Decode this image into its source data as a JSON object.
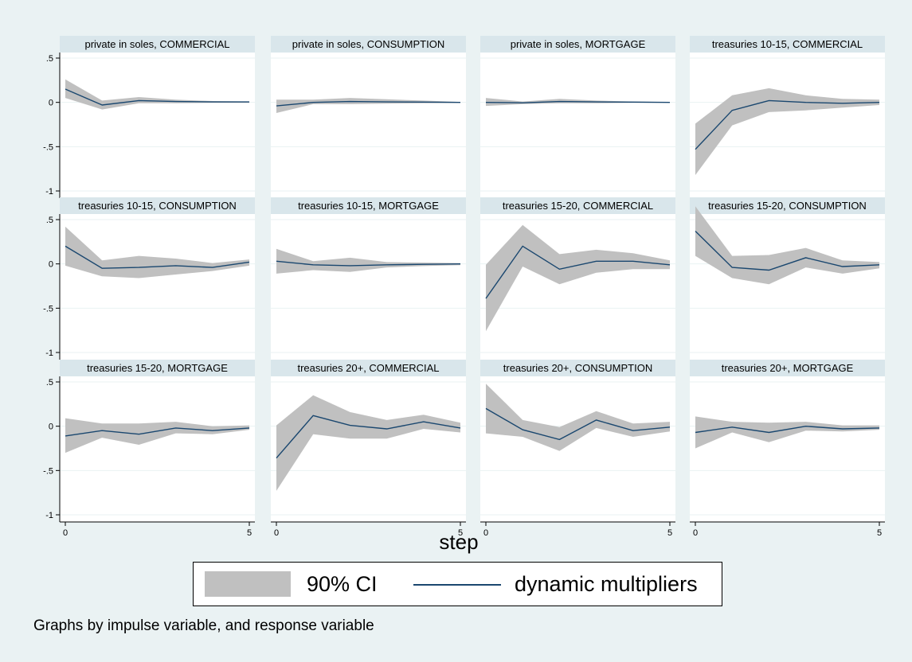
{
  "chart_data": {
    "type": "line",
    "figure_note": "Graphs by impulse variable, and response variable",
    "xlabel": "step",
    "x": [
      0,
      1,
      2,
      3,
      4,
      5
    ],
    "x_tick_labels": [
      "0",
      "5"
    ],
    "xlim": [
      0,
      5
    ],
    "ylim": [
      -1,
      0.5
    ],
    "y_tick_labels": [
      ".5",
      "0",
      "-.5",
      "-1"
    ],
    "grid": "horizontal",
    "legend": {
      "placement": "bottom",
      "items": [
        {
          "label": "90% CI",
          "kind": "band",
          "color": "#c0c0c0"
        },
        {
          "label": "dynamic multipliers",
          "kind": "line",
          "color": "#1a476f"
        }
      ]
    },
    "colors": {
      "band": "#c0c0c0",
      "line": "#1a476f",
      "page_background": "#eaf2f3",
      "plot_background": "#ffffff",
      "title_background": "#d9e6eb",
      "gridline": "#eaf2f3"
    },
    "panels": [
      {
        "title": "private in soles, COMMERCIAL",
        "estimate": [
          0.15,
          -0.03,
          0.02,
          0.01,
          0.005,
          0.005
        ],
        "lower": [
          0.05,
          -0.08,
          -0.01,
          -0.01,
          -0.005,
          -0.005
        ],
        "upper": [
          0.26,
          0.02,
          0.06,
          0.03,
          0.015,
          0.01
        ]
      },
      {
        "title": "private in soles, CONSUMPTION",
        "estimate": [
          -0.04,
          0.0,
          0.01,
          0.005,
          0.003,
          0.0
        ],
        "lower": [
          -0.12,
          -0.02,
          -0.02,
          -0.015,
          -0.01,
          -0.005
        ],
        "upper": [
          0.03,
          0.03,
          0.05,
          0.035,
          0.02,
          0.005
        ]
      },
      {
        "title": "private in soles, MORTGAGE",
        "estimate": [
          0.0,
          -0.005,
          0.01,
          0.005,
          0.003,
          0.0
        ],
        "lower": [
          -0.04,
          -0.02,
          -0.01,
          -0.01,
          -0.005,
          -0.003
        ],
        "upper": [
          0.05,
          0.01,
          0.04,
          0.02,
          0.01,
          0.003
        ]
      },
      {
        "title": "treasuries 10-15, COMMERCIAL",
        "estimate": [
          -0.53,
          -0.09,
          0.02,
          0.0,
          -0.01,
          0.0
        ],
        "lower": [
          -0.82,
          -0.26,
          -0.11,
          -0.09,
          -0.06,
          -0.03
        ],
        "upper": [
          -0.24,
          0.08,
          0.16,
          0.08,
          0.04,
          0.03
        ]
      },
      {
        "title": "treasuries 10-15, CONSUMPTION",
        "estimate": [
          0.2,
          -0.05,
          -0.04,
          -0.02,
          -0.04,
          0.02
        ],
        "lower": [
          -0.02,
          -0.14,
          -0.16,
          -0.12,
          -0.08,
          -0.02
        ],
        "upper": [
          0.42,
          0.04,
          0.09,
          0.06,
          0.01,
          0.05
        ]
      },
      {
        "title": "treasuries 10-15, MORTGAGE",
        "estimate": [
          0.03,
          -0.01,
          -0.02,
          -0.01,
          -0.005,
          0.0
        ],
        "lower": [
          -0.11,
          -0.07,
          -0.09,
          -0.04,
          -0.025,
          -0.015
        ],
        "upper": [
          0.17,
          0.03,
          0.07,
          0.02,
          0.015,
          0.01
        ]
      },
      {
        "title": "treasuries 15-20, COMMERCIAL",
        "estimate": [
          -0.39,
          0.2,
          -0.06,
          0.03,
          0.03,
          -0.01
        ],
        "lower": [
          -0.76,
          -0.03,
          -0.23,
          -0.1,
          -0.06,
          -0.06
        ],
        "upper": [
          -0.01,
          0.44,
          0.11,
          0.16,
          0.12,
          0.04
        ]
      },
      {
        "title": "treasuries 15-20, CONSUMPTION",
        "estimate": [
          0.37,
          -0.04,
          -0.07,
          0.07,
          -0.03,
          -0.01
        ],
        "lower": [
          0.09,
          -0.16,
          -0.23,
          -0.04,
          -0.11,
          -0.05
        ],
        "upper": [
          0.65,
          0.09,
          0.1,
          0.18,
          0.04,
          0.02
        ]
      },
      {
        "title": "treasuries 15-20, MORTGAGE",
        "estimate": [
          -0.11,
          -0.05,
          -0.09,
          -0.02,
          -0.05,
          -0.02
        ],
        "lower": [
          -0.3,
          -0.13,
          -0.21,
          -0.08,
          -0.09,
          -0.04
        ],
        "upper": [
          0.09,
          0.03,
          0.03,
          0.05,
          0.0,
          0.01
        ]
      },
      {
        "title": "treasuries 20+, COMMERCIAL",
        "estimate": [
          -0.36,
          0.12,
          0.01,
          -0.03,
          0.05,
          -0.02
        ],
        "lower": [
          -0.73,
          -0.09,
          -0.14,
          -0.14,
          -0.03,
          -0.07
        ],
        "upper": [
          0.01,
          0.35,
          0.16,
          0.07,
          0.13,
          0.04
        ]
      },
      {
        "title": "treasuries 20+, CONSUMPTION",
        "estimate": [
          0.2,
          -0.04,
          -0.15,
          0.07,
          -0.05,
          -0.01
        ],
        "lower": [
          -0.08,
          -0.12,
          -0.28,
          -0.02,
          -0.12,
          -0.06
        ],
        "upper": [
          0.48,
          0.07,
          -0.01,
          0.17,
          0.03,
          0.05
        ]
      },
      {
        "title": "treasuries 20+, MORTGAGE",
        "estimate": [
          -0.07,
          -0.01,
          -0.07,
          0.0,
          -0.03,
          -0.02
        ],
        "lower": [
          -0.25,
          -0.07,
          -0.18,
          -0.05,
          -0.06,
          -0.04
        ],
        "upper": [
          0.11,
          0.05,
          0.04,
          0.05,
          0.01,
          0.01
        ]
      }
    ]
  }
}
